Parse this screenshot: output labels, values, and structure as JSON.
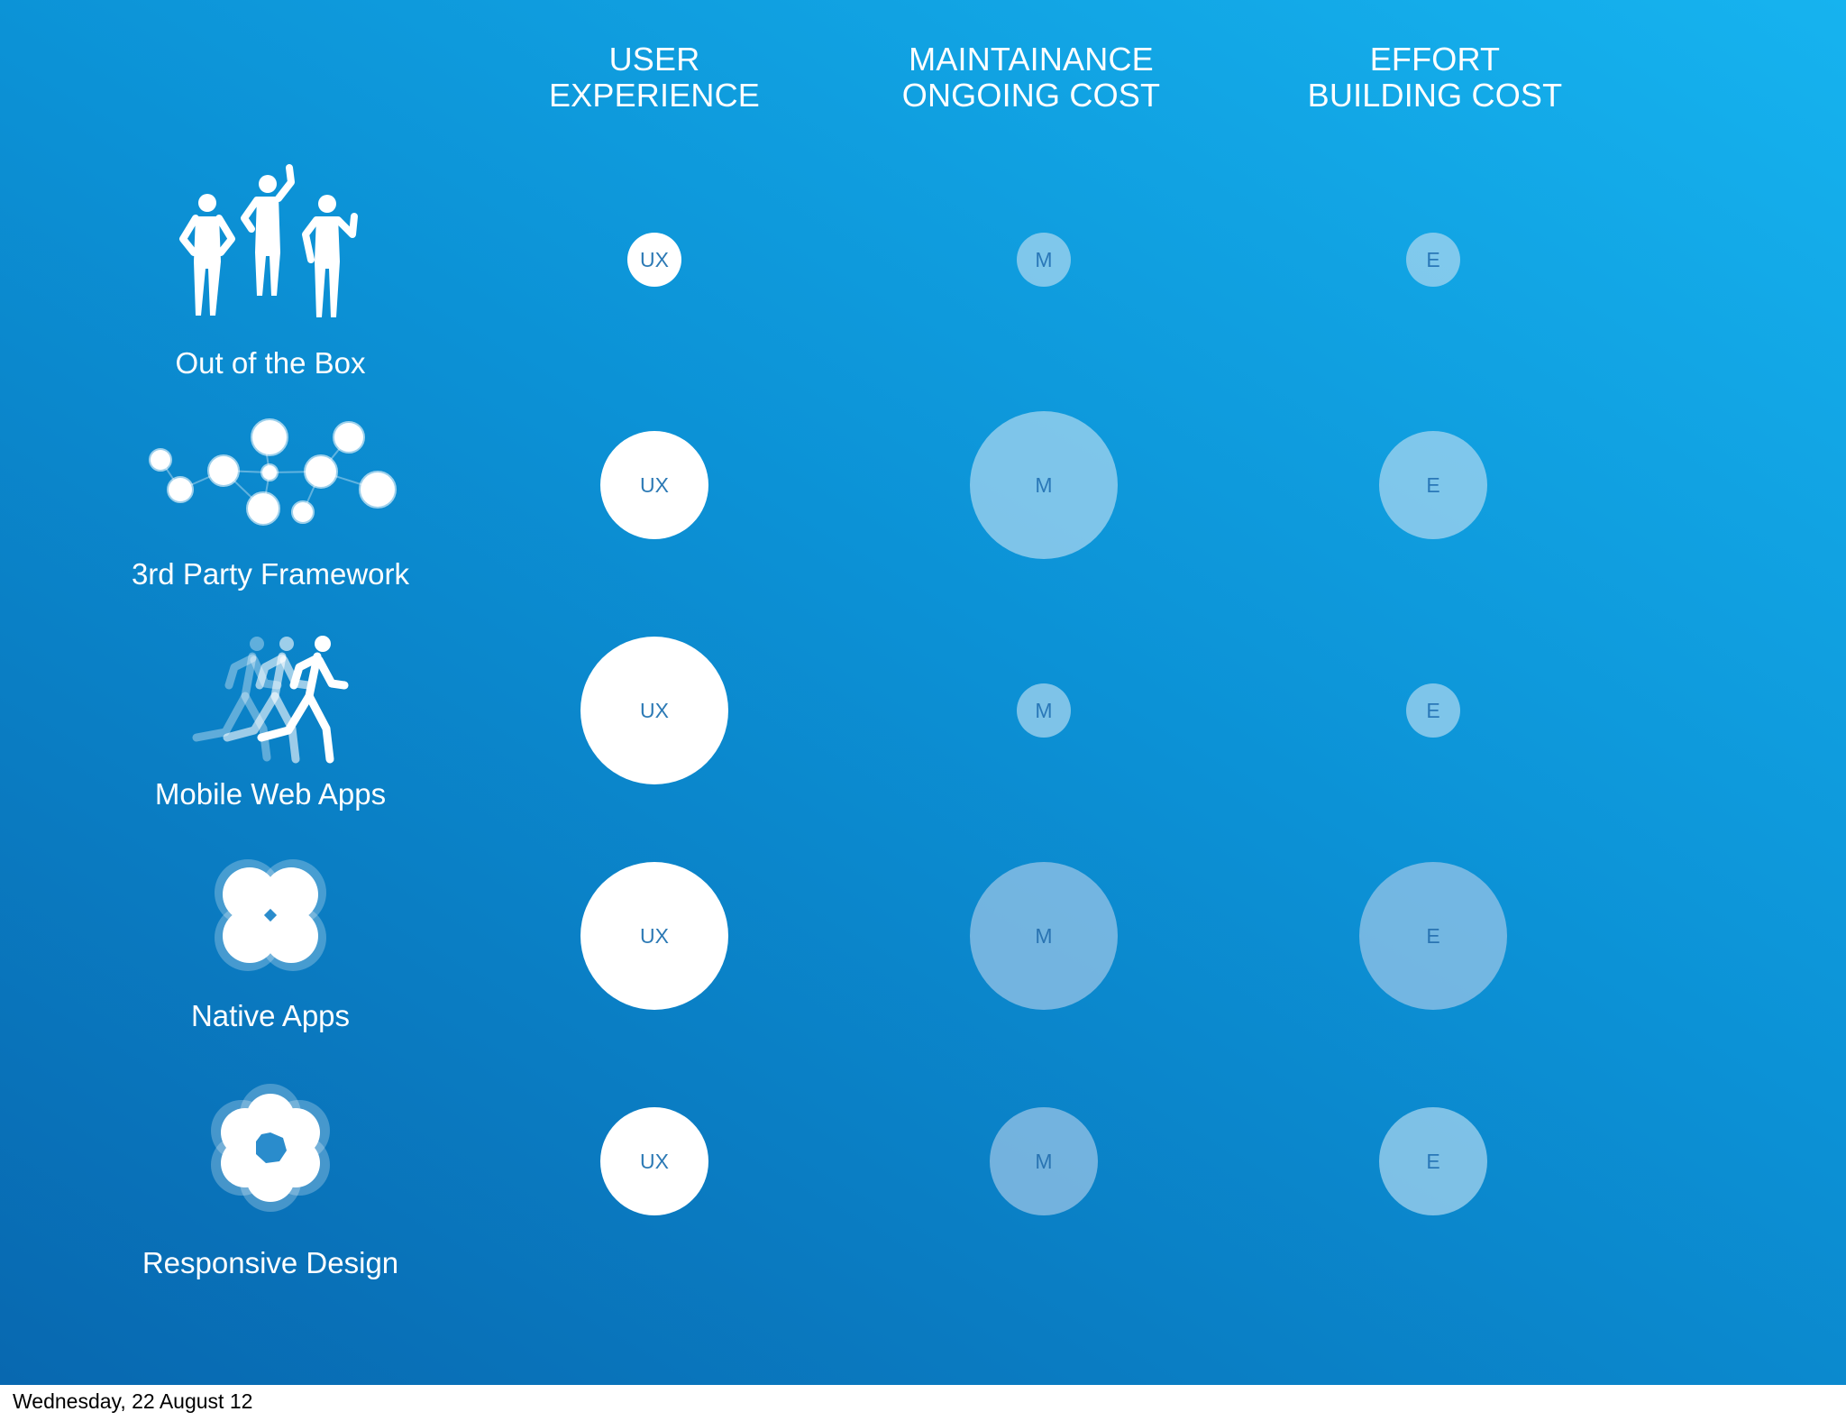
{
  "columns": [
    {
      "line1": "USER",
      "line2": "EXPERIENCE"
    },
    {
      "line1": "MAINTAINANCE",
      "line2": "ONGOING COST"
    },
    {
      "line1": "EFFORT",
      "line2": "BUILDING COST"
    }
  ],
  "rows": [
    {
      "label": "Out of the Box",
      "icon": "people-icon",
      "ux": {
        "text": "UX",
        "size": "small"
      },
      "m": {
        "text": "M",
        "size": "small"
      },
      "e": {
        "text": "E",
        "size": "small"
      }
    },
    {
      "label": "3rd Party Framework",
      "icon": "network-nodes-icon",
      "ux": {
        "text": "UX",
        "size": "medium"
      },
      "m": {
        "text": "M",
        "size": "large"
      },
      "e": {
        "text": "E",
        "size": "medium"
      }
    },
    {
      "label": "Mobile Web Apps",
      "icon": "running-people-icon",
      "ux": {
        "text": "UX",
        "size": "large"
      },
      "m": {
        "text": "M",
        "size": "small"
      },
      "e": {
        "text": "E",
        "size": "small"
      }
    },
    {
      "label": "Native Apps",
      "icon": "four-lobe-flower-icon",
      "ux": {
        "text": "UX",
        "size": "large"
      },
      "m": {
        "text": "M",
        "size": "large"
      },
      "e": {
        "text": "E",
        "size": "large"
      }
    },
    {
      "label": "Responsive Design",
      "icon": "six-lobe-flower-icon",
      "ux": {
        "text": "UX",
        "size": "medium"
      },
      "m": {
        "text": "M",
        "size": "medium"
      },
      "e": {
        "text": "E",
        "size": "medium"
      }
    }
  ],
  "footer": "Wednesday, 22 August 12",
  "colors": {
    "background_top": "#16b3ef",
    "background_bottom": "#0868b0",
    "bubble_ux": "#ffffff",
    "bubble_cost": "#9fd0ee"
  }
}
